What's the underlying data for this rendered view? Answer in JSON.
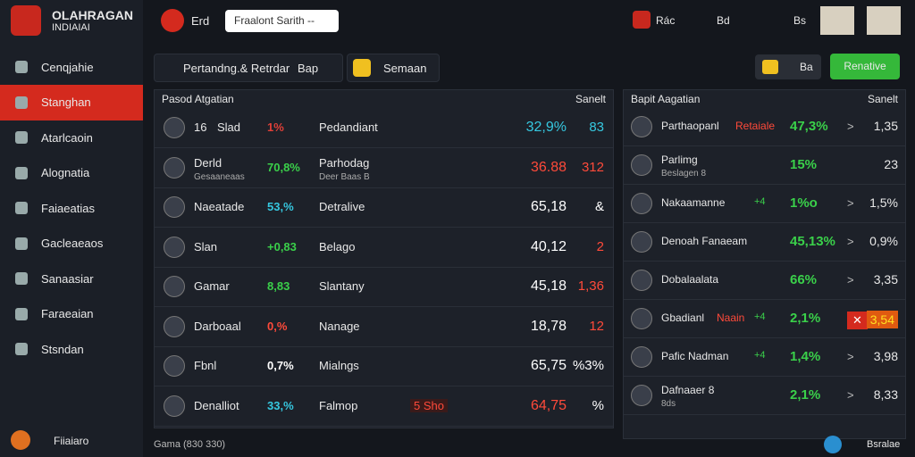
{
  "brand": {
    "title": "OLAHRAGAN",
    "subtitle": "INDIAIAI"
  },
  "sidebar": {
    "active": 1,
    "items": [
      "Cenqjahie",
      "Stanghan",
      "Atarlcaoin",
      "Alognatia",
      "Faiaeatias",
      "Gacleaeaos",
      "Sanaasiar",
      "Faraeaian",
      "Stsndan"
    ],
    "footer": "Fiiaiaro"
  },
  "topbar": {
    "tab": "Erd",
    "search": "Fraalont Sarith --",
    "right": [
      "Rác",
      "Bd",
      "Bs"
    ]
  },
  "toolbar": {
    "filter": "Pertandng.& Retrdar",
    "filter2": "Bap",
    "select": "Semaan",
    "button": "Ba",
    "action": "Renative"
  },
  "left_table": {
    "title": "Pasod Atgatian",
    "sort": "Sanelt",
    "rows": [
      {
        "name": "16",
        "label": "Slad",
        "pct": "1%",
        "pct_color": "#e04038",
        "desc": "Pedandiant",
        "value": "32,9%",
        "value_color": "#36c8e0",
        "extra": "83",
        "extra_color": "#36c8e0"
      },
      {
        "name": "Derld",
        "sub": "Gesaaneaas",
        "pct": "70,8%",
        "pct_color": "#3ad04a",
        "desc": "Parhodag",
        "desc_sub": "Deer Baas B",
        "value": "36.88",
        "value_color": "#ff4a3a",
        "extra": "312",
        "extra_color": "#ff4a3a"
      },
      {
        "name": "Naeatade",
        "pct": "53,%",
        "pct_color": "#36c8e0",
        "desc": "Detralive",
        "value": "65,18",
        "value_color": "#ffffff",
        "extra": "&",
        "extra_color": "#ffffff"
      },
      {
        "name": "Slan",
        "pct": "+0,83",
        "pct_color": "#3ad04a",
        "desc": "Belago",
        "value": "40,12",
        "value_color": "#ffffff",
        "extra": "2",
        "extra_color": "#ff4a3a"
      },
      {
        "name": "Gamar",
        "pct": "8,83",
        "pct_color": "#3ad04a",
        "desc": "Slantany",
        "value": "45,18",
        "value_color": "#ffffff",
        "extra": "1,36",
        "extra_color": "#ff4a3a"
      },
      {
        "name": "Darboaal",
        "pct": "0,%",
        "pct_color": "#ff4a3a",
        "desc": "Nanage",
        "value": "18,78",
        "value_color": "#ffffff",
        "extra": "12",
        "extra_color": "#ff4a3a"
      },
      {
        "name": "Fbnl",
        "pct": "0,7%",
        "pct_color": "#ffffff",
        "desc": "Mialngs",
        "value": "65,75",
        "value_color": "#ffffff",
        "extra": "%3%",
        "extra_color": "#ffffff"
      },
      {
        "name": "Denalliot",
        "pct": "33,%",
        "pct_color": "#36c8e0",
        "desc": "Falmop",
        "tag": "5 Sho",
        "value": "64,75",
        "value_color": "#ff4a3a",
        "extra": "%",
        "extra_color": "#ffffff"
      }
    ]
  },
  "right_table": {
    "title": "Bapit Aagatian",
    "sort": "Sanelt",
    "rows": [
      {
        "name": "Parthaopanl",
        "name2": "Retaiale",
        "pct": "47,3%",
        "arrow": ">",
        "value": "1,35"
      },
      {
        "name": "Parlimg",
        "sub": "Beslagen 8",
        "pct": "15%",
        "value": "23"
      },
      {
        "name": "Nakaamanne",
        "delta": "+4",
        "pct": "1%o",
        "arrow": ">",
        "value": "1,5%"
      },
      {
        "name": "Denoah Fanaeam",
        "pct": "45,13%",
        "arrow": ">",
        "value": "0,9%"
      },
      {
        "name": "Dobalaalata",
        "pct": "66%",
        "arrow": ">",
        "value": "3,35"
      },
      {
        "name": "Gbadianl",
        "name2": "Naain",
        "delta": "+4",
        "pct": "2,1%",
        "arrow": "✕",
        "value": "3,54"
      },
      {
        "name": "Pafic Nadman",
        "delta": "+4",
        "pct": "1,4%",
        "arrow": ">",
        "value": "3,98"
      },
      {
        "name": "Dafnaaer 8",
        "sub": "8ds",
        "pct": "2,1%",
        "arrow": ">",
        "value": "8,33"
      }
    ]
  },
  "footer": {
    "left": "Gama (830 330)",
    "right": "Bsralae"
  }
}
